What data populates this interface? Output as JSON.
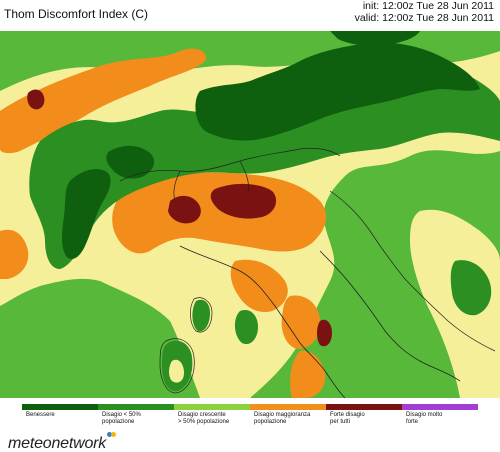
{
  "header": {
    "title": "Thom Discomfort Index (C)",
    "init": "init: 12:00z Tue 28 Jun 2011",
    "valid": "valid: 12:00z Tue 28 Jun 2011"
  },
  "legend": [
    {
      "label": "Benessere",
      "color": "#0e5f0e"
    },
    {
      "label": "Disagio < 50%\npopolazione",
      "color": "#2c8f22"
    },
    {
      "label": "Disagio crescente\n> 50% popolazione",
      "color": "#8cd23a"
    },
    {
      "label": "Disagio maggioranza\npopolazione",
      "color": "#f18f1c"
    },
    {
      "label": "Forte disagio\nper tutti",
      "color": "#7a1212"
    },
    {
      "label": "Disagio molto\nforte",
      "color": "#a03ed6"
    }
  ],
  "map_colors": {
    "sea": "#58b83a",
    "light_yellow": "#f6ef9a",
    "orange": "#f28c1a",
    "dark_red": "#7a1212",
    "green": "#2c8f22",
    "dark_green": "#0e5f0e"
  },
  "logo": {
    "text": "meteonetwork"
  }
}
